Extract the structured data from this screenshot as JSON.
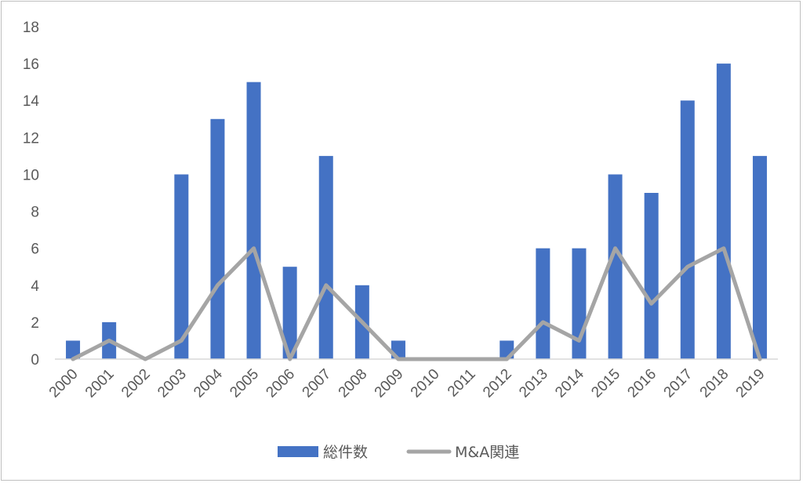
{
  "chart_data": {
    "type": "bar",
    "categories": [
      "2000",
      "2001",
      "2002",
      "2003",
      "2004",
      "2005",
      "2006",
      "2007",
      "2008",
      "2009",
      "2010",
      "2011",
      "2012",
      "2013",
      "2014",
      "2015",
      "2016",
      "2017",
      "2018",
      "2019"
    ],
    "ylim": [
      0,
      18
    ],
    "ytick_step": 2,
    "grid": false,
    "legend_position": "bottom",
    "series": [
      {
        "name": "総件数",
        "type": "bar",
        "color": "#4472c4",
        "values": [
          1,
          2,
          0,
          10,
          13,
          15,
          5,
          11,
          4,
          1,
          0,
          0,
          1,
          6,
          6,
          10,
          9,
          14,
          16,
          11
        ]
      },
      {
        "name": "M&A関連",
        "type": "line",
        "color": "#a5a5a5",
        "values": [
          0,
          1,
          0,
          1,
          4,
          6,
          0,
          4,
          2,
          0,
          0,
          0,
          0,
          2,
          1,
          6,
          3,
          5,
          6,
          0
        ]
      }
    ]
  }
}
